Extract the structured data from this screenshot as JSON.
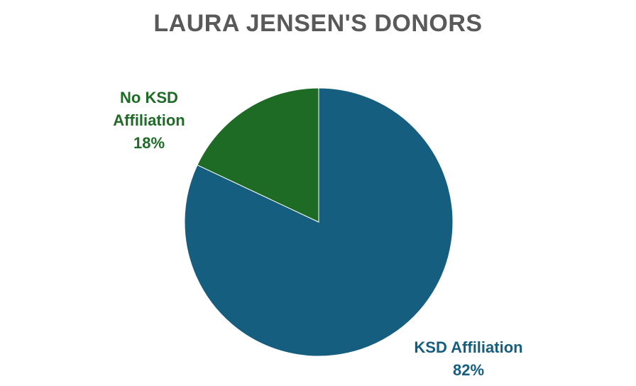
{
  "chart_data": {
    "type": "pie",
    "title": "LAURA JENSEN'S DONORS",
    "slices": [
      {
        "label": "KSD Affiliation",
        "value": 82,
        "value_label": "82%",
        "label_lines": [
          "KSD Affiliation",
          "82%"
        ],
        "color": "#155e80"
      },
      {
        "label": "No KSD Affiliation",
        "value": 18,
        "value_label": "18%",
        "label_lines": [
          "No KSD",
          "Affiliation",
          "18%"
        ],
        "color": "#1e6b26"
      }
    ],
    "legend": "none",
    "start_angle": "12 o'clock",
    "direction": "clockwise"
  }
}
